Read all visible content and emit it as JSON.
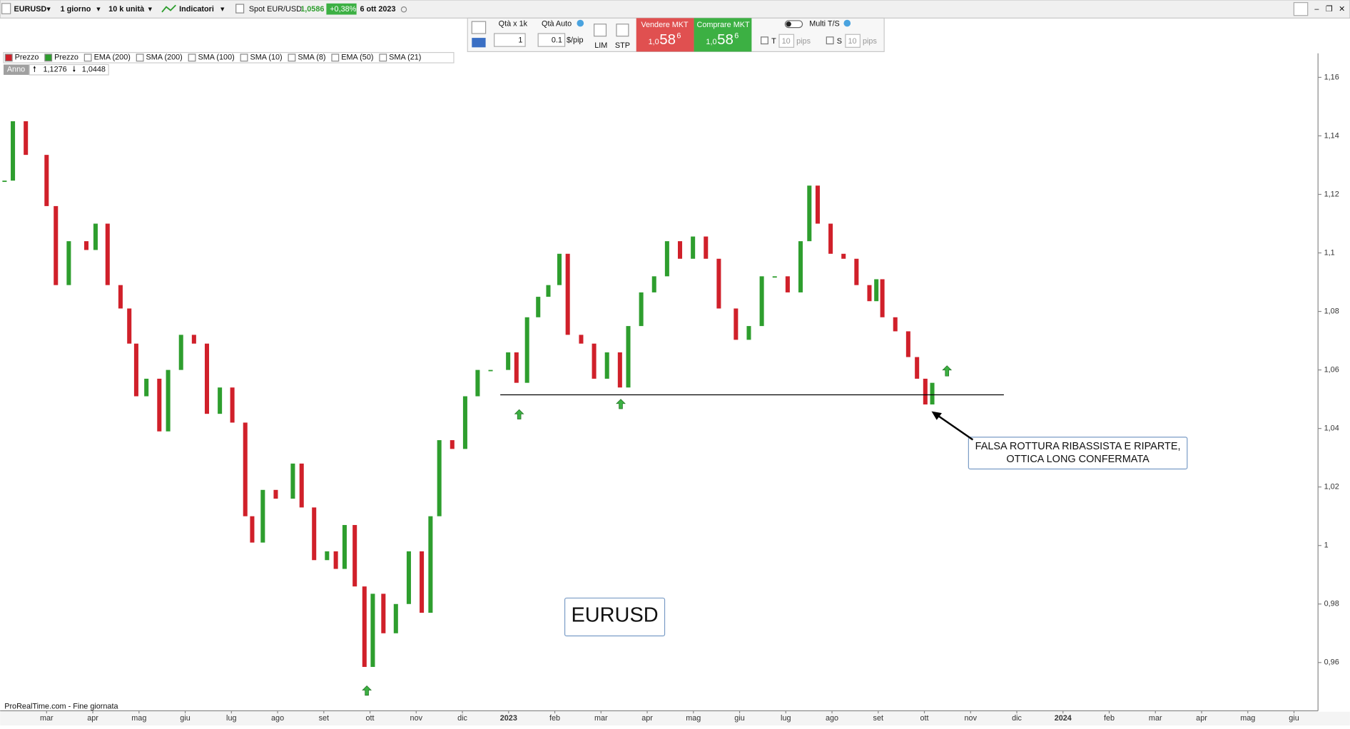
{
  "toolbar": {
    "symbol": "EURUSD",
    "period": "1 giorno",
    "units": "10 k unità",
    "indicators": "Indicatori",
    "instrument": "Spot EUR/USD",
    "price": "1,0586",
    "change": "+0,38%",
    "date": "6 ott 2023"
  },
  "order_panel": {
    "qty_label": "Qtà  x 1k",
    "qty_auto": "Qtà Auto",
    "qty": "1",
    "pip_value": "0.1",
    "pip_unit": "$/pip",
    "lim": "LIM",
    "stp": "STP",
    "sell": {
      "label": "Vendere MKT",
      "prefix": "1,0",
      "big": "58",
      "sup": "6"
    },
    "buy": {
      "label": "Comprare MKT",
      "prefix": "1,0",
      "big": "58",
      "sup": "6"
    },
    "multi": "Multi T/S",
    "t_label": "T",
    "t_value": "10",
    "t_unit": "pips",
    "s_label": "S",
    "s_value": "10",
    "s_unit": "pips"
  },
  "indicator_bar": [
    "Prezzo",
    "Prezzo",
    "EMA (200)",
    "SMA (200)",
    "SMA (100)",
    "SMA (10)",
    "SMA (8)",
    "EMA (50)",
    "SMA (21)"
  ],
  "range_bar": {
    "label": "Anno",
    "high": "1,1276",
    "low": "1,0448"
  },
  "footer": "ProRealTime.com - Fine giornata",
  "chart_data": {
    "type": "candlestick",
    "title": "EURUSD",
    "annotation": [
      "FALSA ROTTURA RIBASSISTA E RIPARTE,",
      "OTTICA LONG CONFERMATA"
    ],
    "up_color": "#2e9e2e",
    "down_color": "#d0202a",
    "line_color": "#000000",
    "support": {
      "value": 1.0515,
      "x": [
        9.82,
        20.72
      ]
    },
    "x": [
      -0.91,
      -0.73,
      -0.45,
      0,
      0.2,
      0.48,
      0.86,
      1.06,
      1.32,
      1.6,
      1.79,
      1.94,
      2.16,
      2.44,
      2.63,
      2.91,
      3.19,
      3.47,
      3.75,
      4.02,
      4.3,
      4.45,
      4.68,
      4.96,
      5.33,
      5.52,
      5.79,
      6.07,
      6.26,
      6.45,
      6.67,
      6.88,
      7.06,
      7.29,
      7.56,
      7.84,
      8.12,
      8.31,
      8.5,
      8.78,
      9.06,
      9.33,
      9.61,
      9.99,
      10.17,
      10.4,
      10.64,
      10.86,
      11.1,
      11.28,
      11.57,
      11.85,
      12.13,
      12.41,
      12.59,
      12.87,
      13.15,
      13.43,
      13.71,
      13.99,
      14.27,
      14.55,
      14.92,
      15.2,
      15.48,
      15.76,
      16.04,
      16.32,
      16.51,
      16.69,
      16.97,
      17.25,
      17.53,
      17.81,
      17.96,
      18.09,
      18.37,
      18.65,
      18.84,
      19.02,
      19.17
    ],
    "values": [
      1.1247,
      1.145,
      1.1335,
      1.116,
      1.089,
      1.104,
      1.101,
      1.11,
      1.089,
      1.081,
      1.069,
      1.051,
      1.057,
      1.039,
      1.06,
      1.072,
      1.069,
      1.045,
      1.054,
      1.042,
      1.01,
      1.001,
      1.019,
      1.016,
      1.028,
      1.013,
      0.995,
      0.998,
      0.992,
      1.007,
      0.986,
      0.9585,
      0.9835,
      0.97,
      0.98,
      0.998,
      0.977,
      1.01,
      1.036,
      1.033,
      1.051,
      1.06,
      1.06,
      1.066,
      1.0556,
      1.078,
      1.085,
      1.089,
      1.0997,
      1.072,
      1.069,
      1.057,
      1.066,
      1.054,
      1.075,
      1.0865,
      1.092,
      1.104,
      1.098,
      1.1056,
      1.098,
      1.081,
      1.0703,
      1.075,
      1.092,
      1.092,
      1.0865,
      1.104,
      1.123,
      1.11,
      1.0997,
      1.098,
      1.089,
      1.0835,
      1.091,
      1.078,
      1.0732,
      1.0644,
      1.057,
      1.0482,
      1.0556
    ],
    "xlim": [
      -1.006,
      27.52
    ],
    "xticks": [
      {
        "value": 0,
        "label": "mar"
      },
      {
        "value": 1,
        "label": "apr"
      },
      {
        "value": 2,
        "label": "mag"
      },
      {
        "value": 3,
        "label": "giu"
      },
      {
        "value": 4,
        "label": "lug"
      },
      {
        "value": 5,
        "label": "ago"
      },
      {
        "value": 6,
        "label": "set"
      },
      {
        "value": 7,
        "label": "ott"
      },
      {
        "value": 8,
        "label": "nov"
      },
      {
        "value": 9,
        "label": "dic"
      },
      {
        "value": 10,
        "label": "2023"
      },
      {
        "value": 11,
        "label": "feb"
      },
      {
        "value": 12,
        "label": "mar"
      },
      {
        "value": 13,
        "label": "apr"
      },
      {
        "value": 14,
        "label": "mag"
      },
      {
        "value": 15,
        "label": "giu"
      },
      {
        "value": 16,
        "label": "lug"
      },
      {
        "value": 17,
        "label": "ago"
      },
      {
        "value": 18,
        "label": "set"
      },
      {
        "value": 19,
        "label": "ott"
      },
      {
        "value": 20,
        "label": "nov"
      },
      {
        "value": 21,
        "label": "dic"
      },
      {
        "value": 22,
        "label": "2024"
      },
      {
        "value": 23,
        "label": "feb"
      },
      {
        "value": 24,
        "label": "mar"
      },
      {
        "value": 25,
        "label": "apr"
      },
      {
        "value": 26,
        "label": "mag"
      },
      {
        "value": 27,
        "label": "giu"
      }
    ],
    "ylim": [
      0.9435,
      1.1682
    ],
    "yticks": [
      {
        "value": 0.96,
        "label": "0,96"
      },
      {
        "value": 0.98,
        "label": "0,98"
      },
      1,
      {
        "value": 1.02,
        "label": "1,02"
      },
      {
        "value": 1.04,
        "label": "1,04"
      },
      {
        "value": 1.06,
        "label": "1,06"
      },
      {
        "value": 1.08,
        "label": "1,08"
      },
      {
        "value": 1.1,
        "label": "1,1"
      },
      {
        "value": 1.12,
        "label": "1,12"
      },
      {
        "value": 1.14,
        "label": "1,14"
      },
      {
        "value": 1.16,
        "label": "1,16"
      }
    ]
  }
}
